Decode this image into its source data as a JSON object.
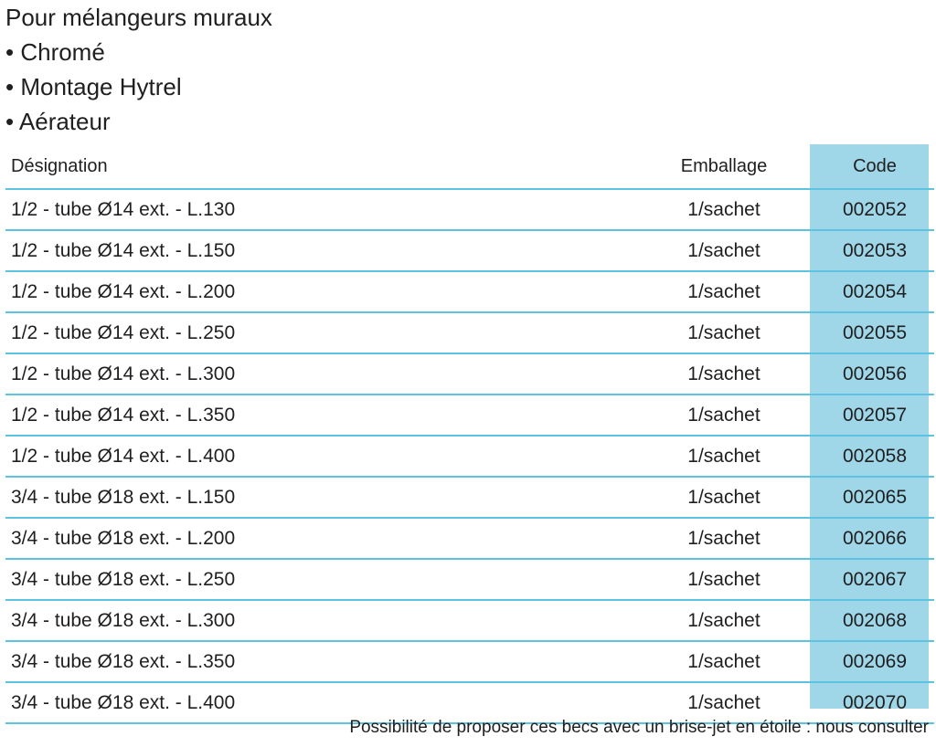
{
  "intro": {
    "title": "Pour mélangeurs muraux",
    "bullets": [
      "• Chromé",
      "• Montage Hytrel",
      "• Aérateur"
    ]
  },
  "table": {
    "headers": {
      "designation": "Désignation",
      "emballage": "Emballage",
      "code": "Code"
    },
    "rows": [
      {
        "designation": "1/2 - tube Ø14 ext.  - L.130",
        "emballage": "1/sachet",
        "code": "002052"
      },
      {
        "designation": "1/2 - tube Ø14 ext.  - L.150",
        "emballage": "1/sachet",
        "code": "002053"
      },
      {
        "designation": "1/2 - tube Ø14 ext.  - L.200",
        "emballage": "1/sachet",
        "code": "002054"
      },
      {
        "designation": "1/2 - tube Ø14 ext.  - L.250",
        "emballage": "1/sachet",
        "code": "002055"
      },
      {
        "designation": "1/2 - tube Ø14 ext.  - L.300",
        "emballage": "1/sachet",
        "code": "002056"
      },
      {
        "designation": "1/2 - tube Ø14 ext.  - L.350",
        "emballage": "1/sachet",
        "code": "002057"
      },
      {
        "designation": "1/2 - tube Ø14 ext.  - L.400",
        "emballage": "1/sachet",
        "code": "002058"
      },
      {
        "designation": "3/4 - tube Ø18 ext.  - L.150",
        "emballage": "1/sachet",
        "code": "002065"
      },
      {
        "designation": "3/4 - tube Ø18 ext.  - L.200",
        "emballage": "1/sachet",
        "code": "002066"
      },
      {
        "designation": "3/4 - tube Ø18 ext.  - L.250",
        "emballage": "1/sachet",
        "code": "002067"
      },
      {
        "designation": "3/4 - tube Ø18 ext.  - L.300",
        "emballage": "1/sachet",
        "code": "002068"
      },
      {
        "designation": "3/4 - tube Ø18 ext.  - L.350",
        "emballage": "1/sachet",
        "code": "002069"
      },
      {
        "designation": "3/4 - tube Ø18 ext.  - L.400",
        "emballage": "1/sachet",
        "code": "002070"
      }
    ]
  },
  "footer": {
    "note": "Possibilité de proposer ces becs avec un brise-jet en étoile : nous consulter"
  },
  "colors": {
    "accent_line": "#5cc3e0",
    "code_column_bg": "#9fd6e8",
    "text": "#1f1f1f"
  }
}
